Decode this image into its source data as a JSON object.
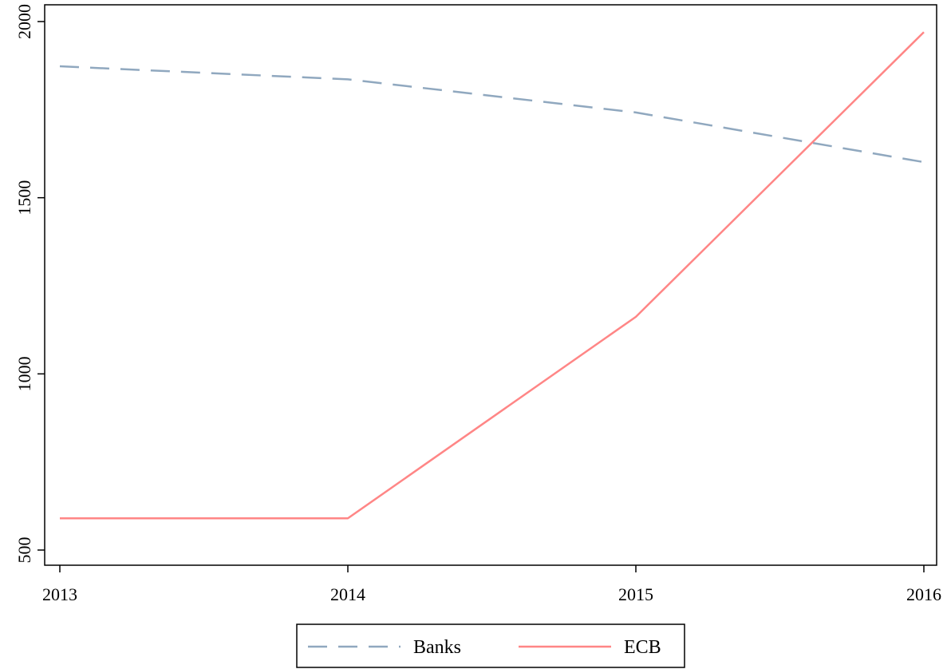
{
  "chart_data": {
    "type": "line",
    "title": "",
    "xlabel": "",
    "ylabel": "",
    "x": [
      2013,
      2014,
      2015,
      2016
    ],
    "xticks": [
      "2013",
      "2014",
      "2015",
      "2016"
    ],
    "yticks": [
      "500",
      "1000",
      "1500",
      "2000"
    ],
    "ylim": [
      500,
      2000
    ],
    "grid": false,
    "legend_position": "bottom",
    "series": [
      {
        "name": "Banks",
        "values": [
          1873,
          1836,
          1742,
          1601
        ],
        "color": "#90a8bf",
        "style": "dashed"
      },
      {
        "name": "ECB",
        "values": [
          590,
          590,
          1162,
          1970
        ],
        "color": "#ff8686",
        "style": "solid"
      }
    ]
  }
}
